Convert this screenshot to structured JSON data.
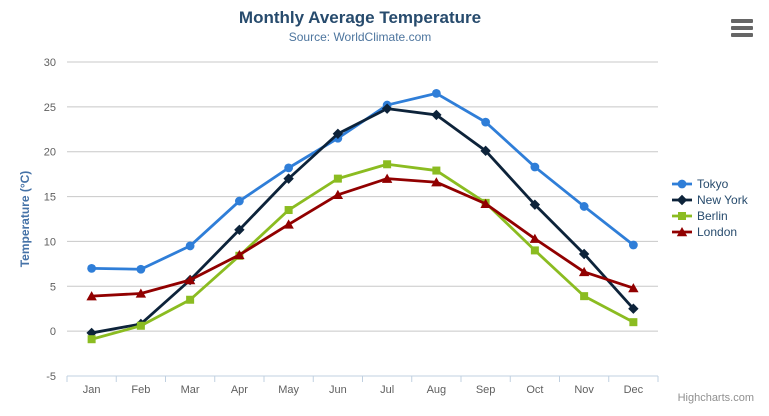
{
  "chart": {
    "title": "Monthly Average Temperature",
    "subtitle": "Source: WorldClimate.com",
    "credits": "Highcharts.com",
    "menu_icon": "hamburger-icon"
  },
  "chart_data": {
    "type": "line",
    "title": "Monthly Average Temperature",
    "subtitle": "Source: WorldClimate.com",
    "categories": [
      "Jan",
      "Feb",
      "Mar",
      "Apr",
      "May",
      "Jun",
      "Jul",
      "Aug",
      "Sep",
      "Oct",
      "Nov",
      "Dec"
    ],
    "series": [
      {
        "name": "Tokyo",
        "color": "#2f7ed8",
        "marker": "circle",
        "values": [
          7.0,
          6.9,
          9.5,
          14.5,
          18.2,
          21.5,
          25.2,
          26.5,
          23.3,
          18.3,
          13.9,
          9.6
        ]
      },
      {
        "name": "New York",
        "color": "#0d233a",
        "marker": "diamond",
        "values": [
          -0.2,
          0.8,
          5.7,
          11.3,
          17.0,
          22.0,
          24.8,
          24.1,
          20.1,
          14.1,
          8.6,
          2.5
        ]
      },
      {
        "name": "Berlin",
        "color": "#8bbc21",
        "marker": "square",
        "values": [
          -0.9,
          0.6,
          3.5,
          8.4,
          13.5,
          17.0,
          18.6,
          17.9,
          14.3,
          9.0,
          3.9,
          1.0
        ]
      },
      {
        "name": "London",
        "color": "#910000",
        "marker": "triangle",
        "values": [
          3.9,
          4.2,
          5.7,
          8.5,
          11.9,
          15.2,
          17.0,
          16.6,
          14.2,
          10.3,
          6.6,
          4.8
        ]
      }
    ],
    "xlabel": "",
    "ylabel": "Temperature (°C)",
    "ylim": [
      -5,
      30
    ],
    "yticks": [
      -5,
      0,
      5,
      10,
      15,
      20,
      25,
      30
    ],
    "grid": true,
    "legend_position": "right"
  },
  "colors": {
    "title": "#274b6d",
    "subtitle": "#4d759e",
    "axis_label": "#606060",
    "yaxis_title": "#4572a7",
    "legend_text": "#274b6d",
    "grid_line": "#c8c8c8",
    "axis_line": "#c0d0e0",
    "credits": "#909090",
    "menu_icon": "#666666",
    "background": "#ffffff"
  }
}
